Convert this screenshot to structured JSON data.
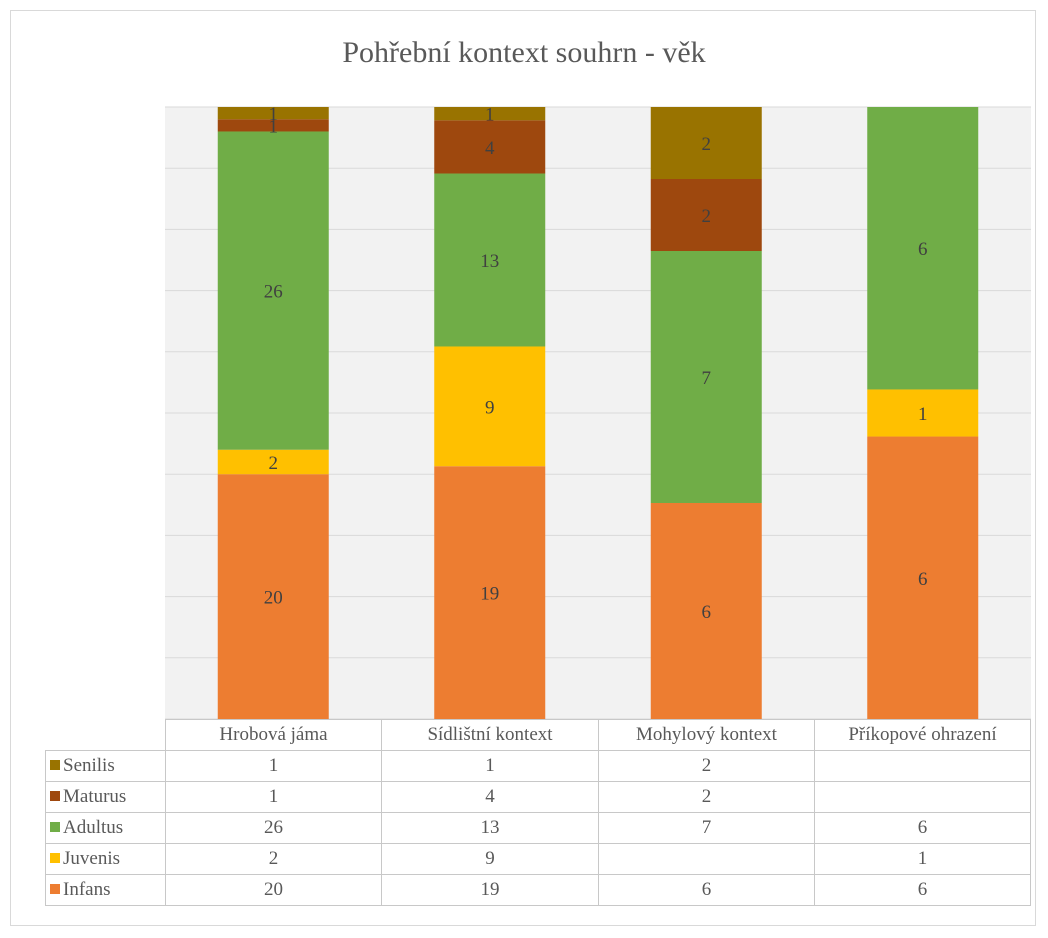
{
  "chart_data": {
    "type": "bar",
    "stacked": true,
    "title": "Pohřební kontext souhrn - věk",
    "categories": [
      "Hrobová jáma",
      "Sídlištní kontext",
      "Mohylový kontext",
      "Příkopové ohrazení"
    ],
    "normalized": true,
    "series": [
      {
        "name": "Infans",
        "color": "#ED7D31",
        "values": [
          20,
          19,
          6,
          6
        ]
      },
      {
        "name": "Juvenis",
        "color": "#FFC000",
        "values": [
          2,
          9,
          null,
          1
        ]
      },
      {
        "name": "Adultus",
        "color": "#70AD47",
        "values": [
          26,
          13,
          7,
          6
        ]
      },
      {
        "name": "Maturus",
        "color": "#9E480E",
        "values": [
          1,
          4,
          2,
          null
        ]
      },
      {
        "name": "Senilis",
        "color": "#997300",
        "values": [
          1,
          1,
          2,
          null
        ]
      }
    ],
    "grid": true,
    "legend": "data-table",
    "table_row_order": [
      "Senilis",
      "Maturus",
      "Adultus",
      "Juvenis",
      "Infans"
    ]
  }
}
